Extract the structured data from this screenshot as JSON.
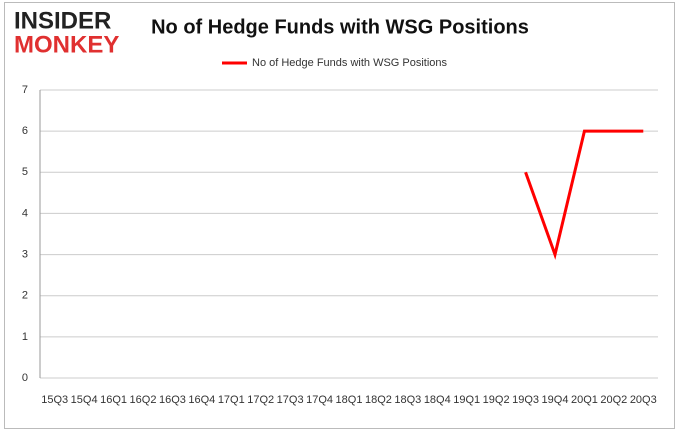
{
  "logo": {
    "line1": "INSIDER",
    "line2": "MONKEY"
  },
  "chart_data": {
    "type": "line",
    "title": "No of Hedge Funds with WSG Positions",
    "categories": [
      "15Q3",
      "15Q4",
      "16Q1",
      "16Q2",
      "16Q3",
      "16Q4",
      "17Q1",
      "17Q2",
      "17Q3",
      "17Q4",
      "18Q1",
      "18Q2",
      "18Q3",
      "18Q4",
      "19Q1",
      "19Q2",
      "19Q3",
      "19Q4",
      "20Q1",
      "20Q2",
      "20Q3"
    ],
    "series": [
      {
        "name": "No of Hedge Funds with WSG Positions",
        "color": "#ff0000",
        "values": [
          null,
          null,
          null,
          null,
          null,
          null,
          null,
          null,
          null,
          null,
          null,
          null,
          null,
          null,
          null,
          null,
          5,
          3,
          6,
          6,
          6
        ]
      }
    ],
    "ylim": [
      0,
      7
    ],
    "yticks": [
      0,
      1,
      2,
      3,
      4,
      5,
      6,
      7
    ],
    "grid": true,
    "legend": "top"
  }
}
